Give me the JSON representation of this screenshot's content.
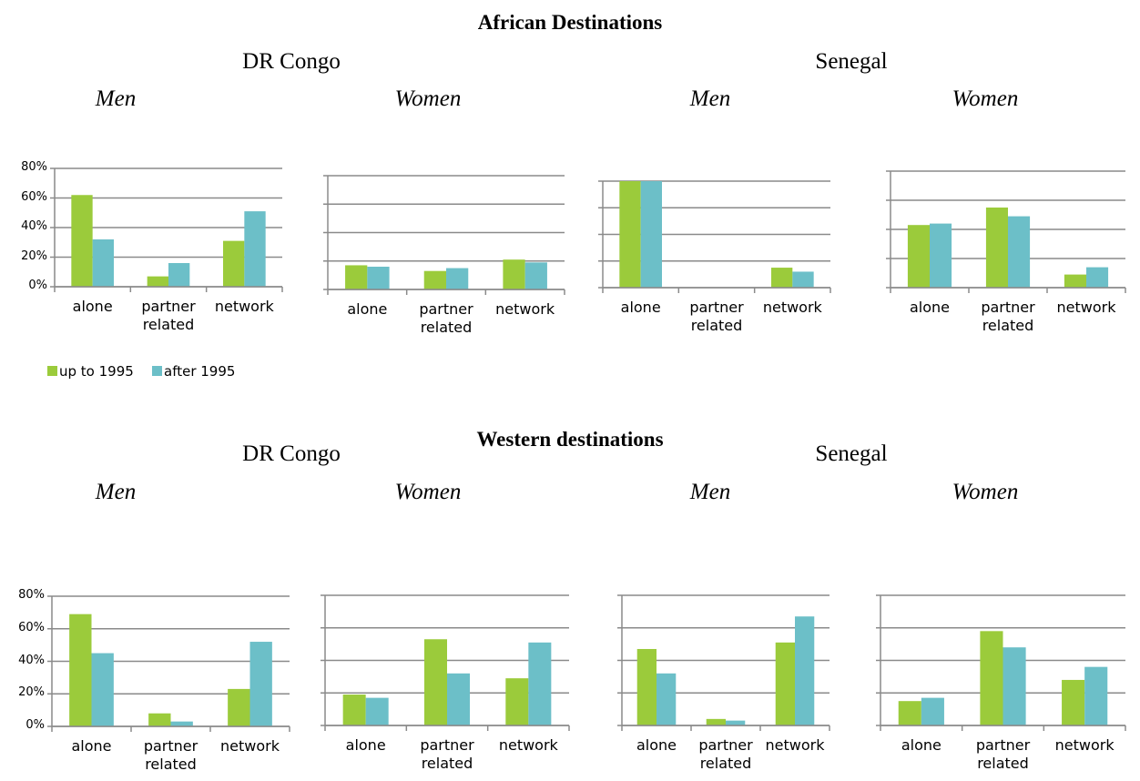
{
  "sections": [
    {
      "title": "African Destinations",
      "countries": [
        "DR Congo",
        "Senegal"
      ]
    },
    {
      "title": "Western destinations",
      "countries": [
        "DR Congo",
        "Senegal"
      ]
    }
  ],
  "chart_data": [
    {
      "type": "bar",
      "title": "Men",
      "categories": [
        "alone",
        "partner related",
        "network"
      ],
      "series": [
        {
          "name": "up to 1995",
          "color": "#9bcb3b",
          "values": [
            62,
            7,
            31
          ]
        },
        {
          "name": "after 1995",
          "color": "#6cbfc8",
          "values": [
            32,
            16,
            51
          ]
        }
      ],
      "ylim": [
        0,
        80
      ],
      "yticks": [
        {
          "value": 0,
          "label": "0%"
        },
        {
          "value": 20,
          "label": "20%"
        },
        {
          "value": 40,
          "label": "40%"
        },
        {
          "value": 60,
          "label": "60%"
        },
        {
          "value": 80,
          "label": "80%"
        }
      ],
      "grid": true,
      "legend": "bottom-left"
    },
    {
      "type": "bar",
      "title": "Women",
      "categories": [
        "alone",
        "partner related",
        "network"
      ],
      "series": [
        {
          "name": "up to 1995",
          "color": "#9bcb3b",
          "values": [
            17,
            13,
            21
          ]
        },
        {
          "name": "after 1995",
          "color": "#6cbfc8",
          "values": [
            16,
            15,
            19
          ]
        }
      ],
      "ylim": [
        0,
        80
      ],
      "yticks": [
        0,
        20,
        40,
        60,
        80
      ],
      "ytick_labels": false,
      "grid": true
    },
    {
      "type": "bar",
      "title": "Men",
      "categories": [
        "alone",
        "partner related",
        "network"
      ],
      "series": [
        {
          "name": "up to 1995",
          "color": "#9bcb3b",
          "values": [
            80,
            0,
            15
          ]
        },
        {
          "name": "after 1995",
          "color": "#6cbfc8",
          "values": [
            80,
            0,
            12
          ]
        }
      ],
      "ylim": [
        0,
        80
      ],
      "yticks": [
        0,
        20,
        40,
        60,
        80
      ],
      "ytick_labels": false,
      "grid": true
    },
    {
      "type": "bar",
      "title": "Women",
      "categories": [
        "alone",
        "partner related",
        "network"
      ],
      "series": [
        {
          "name": "up to 1995",
          "color": "#9bcb3b",
          "values": [
            43,
            55,
            9
          ]
        },
        {
          "name": "after 1995",
          "color": "#6cbfc8",
          "values": [
            44,
            49,
            14
          ]
        }
      ],
      "ylim": [
        0,
        80
      ],
      "yticks": [
        0,
        20,
        40,
        60,
        80
      ],
      "ytick_labels": false,
      "grid": true
    },
    {
      "type": "bar",
      "title": "Men",
      "categories": [
        "alone",
        "partner related",
        "network"
      ],
      "series": [
        {
          "name": "up to 1995",
          "color": "#9bcb3b",
          "values": [
            69,
            8,
            23
          ]
        },
        {
          "name": "after 1995",
          "color": "#6cbfc8",
          "values": [
            45,
            3,
            52
          ]
        }
      ],
      "ylim": [
        0,
        80
      ],
      "yticks": [
        {
          "value": 0,
          "label": "0%"
        },
        {
          "value": 20,
          "label": "20%"
        },
        {
          "value": 40,
          "label": "40%"
        },
        {
          "value": 60,
          "label": "60%"
        },
        {
          "value": 80,
          "label": "80%"
        }
      ],
      "grid": true
    },
    {
      "type": "bar",
      "title": "Women",
      "categories": [
        "alone",
        "partner related",
        "network"
      ],
      "series": [
        {
          "name": "up to 1995",
          "color": "#9bcb3b",
          "values": [
            19,
            53,
            29
          ]
        },
        {
          "name": "after 1995",
          "color": "#6cbfc8",
          "values": [
            17,
            32,
            51
          ]
        }
      ],
      "ylim": [
        0,
        80
      ],
      "yticks": [
        0,
        20,
        40,
        60,
        80
      ],
      "ytick_labels": false,
      "grid": true
    },
    {
      "type": "bar",
      "title": "Men",
      "categories": [
        "alone",
        "partner related",
        "network"
      ],
      "series": [
        {
          "name": "up to 1995",
          "color": "#9bcb3b",
          "values": [
            47,
            4,
            51
          ]
        },
        {
          "name": "after 1995",
          "color": "#6cbfc8",
          "values": [
            32,
            3,
            67
          ]
        }
      ],
      "ylim": [
        0,
        80
      ],
      "yticks": [
        0,
        20,
        40,
        60,
        80
      ],
      "ytick_labels": false,
      "grid": true
    },
    {
      "type": "bar",
      "title": "Women",
      "categories": [
        "alone",
        "partner related",
        "network"
      ],
      "series": [
        {
          "name": "up to 1995",
          "color": "#9bcb3b",
          "values": [
            15,
            58,
            28
          ]
        },
        {
          "name": "after 1995",
          "color": "#6cbfc8",
          "values": [
            17,
            48,
            36
          ]
        }
      ],
      "ylim": [
        0,
        80
      ],
      "yticks": [
        0,
        20,
        40,
        60,
        80
      ],
      "ytick_labels": false,
      "grid": true
    }
  ]
}
